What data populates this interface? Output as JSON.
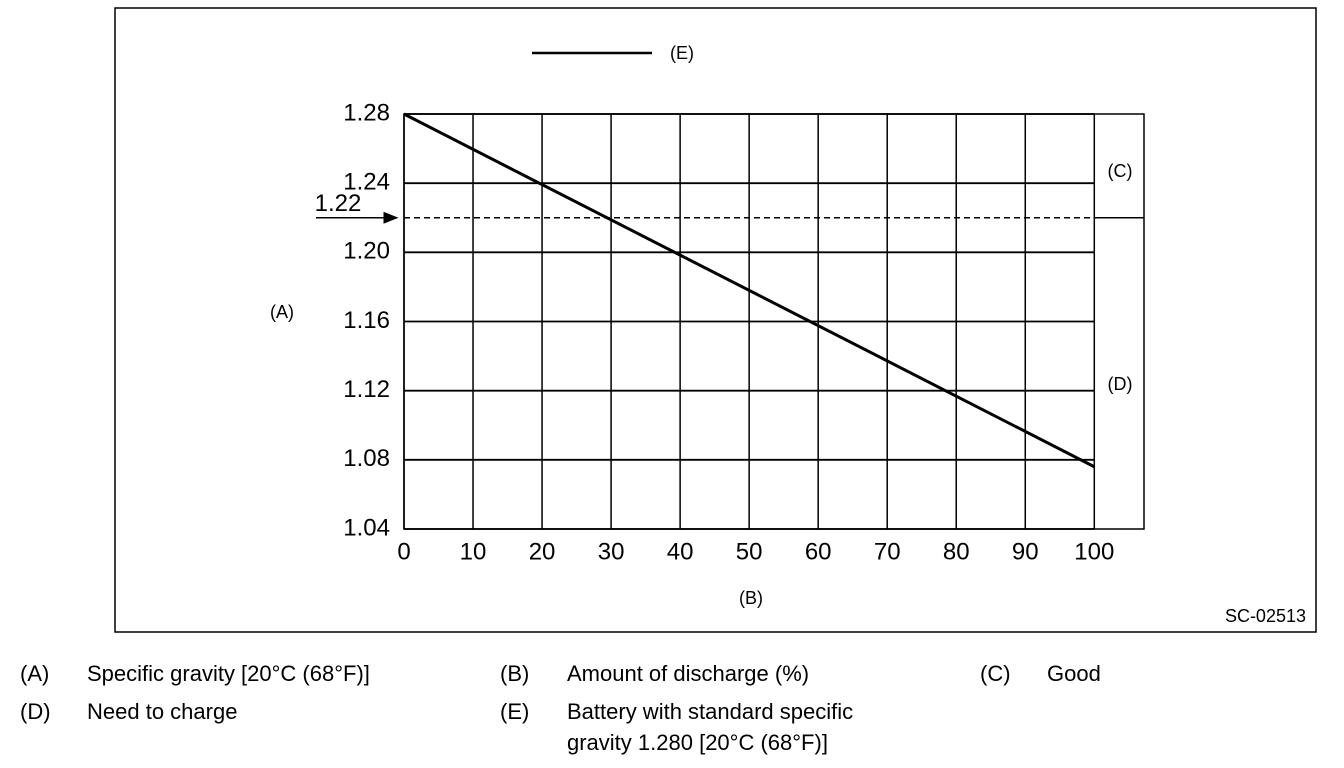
{
  "chart_data": {
    "type": "line",
    "x_label": "(B)",
    "y_label": "(A)",
    "x": [
      0,
      100
    ],
    "series": [
      {
        "name": "(E)",
        "color": "#000000",
        "values": [
          1.28,
          1.076
        ]
      }
    ],
    "xlim": [
      0,
      107.2
    ],
    "ylim": [
      1.04,
      1.28
    ],
    "xticks": [
      0,
      10,
      20,
      30,
      40,
      50,
      60,
      70,
      80,
      90,
      100
    ],
    "yticks": [
      1.04,
      1.08,
      1.12,
      1.16,
      {
        "value": 1.2,
        "label": "1.20"
      },
      1.24,
      1.28
    ],
    "grid": true,
    "threshold": 1.22,
    "zone_above": "(C)",
    "zone_below": "(D)",
    "figure_code": "SC-02513"
  },
  "notes": [
    {
      "key": "(A)",
      "text": [
        "Specific gravity [20°C (68°F)]"
      ]
    },
    {
      "key": "(B)",
      "text": [
        "Amount of discharge (%)"
      ]
    },
    {
      "key": "(C)",
      "text": [
        "Good"
      ]
    },
    {
      "key": "(D)",
      "text": [
        "Need to charge"
      ]
    },
    {
      "key": "(E)",
      "text": [
        "Battery with standard specific",
        "gravity 1.280 [20°C (68°F)]"
      ]
    }
  ]
}
